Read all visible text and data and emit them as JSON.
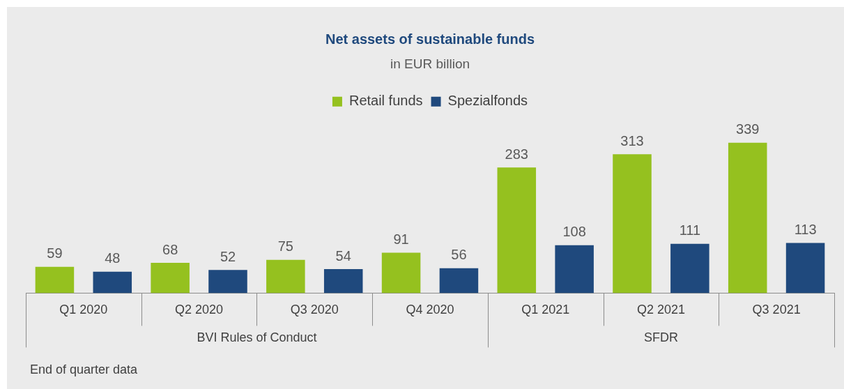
{
  "chart_data": {
    "type": "bar",
    "title": "Net assets of sustainable funds",
    "subtitle": "in EUR billion",
    "categories": [
      "Q1 2020",
      "Q2 2020",
      "Q3 2020",
      "Q4 2020",
      "Q1 2021",
      "Q2 2021",
      "Q3 2021"
    ],
    "series": [
      {
        "name": "Retail funds",
        "color": "#95c11f",
        "values": [
          59,
          68,
          75,
          91,
          283,
          313,
          339
        ]
      },
      {
        "name": "Spezialfonds",
        "color": "#1f497d",
        "values": [
          48,
          52,
          54,
          56,
          108,
          111,
          113
        ]
      }
    ],
    "data_labels": true,
    "legend": "top",
    "grid": false,
    "annotations": [
      "BVI Rules of Conduct",
      "SFDR",
      "End of quarter data"
    ]
  }
}
